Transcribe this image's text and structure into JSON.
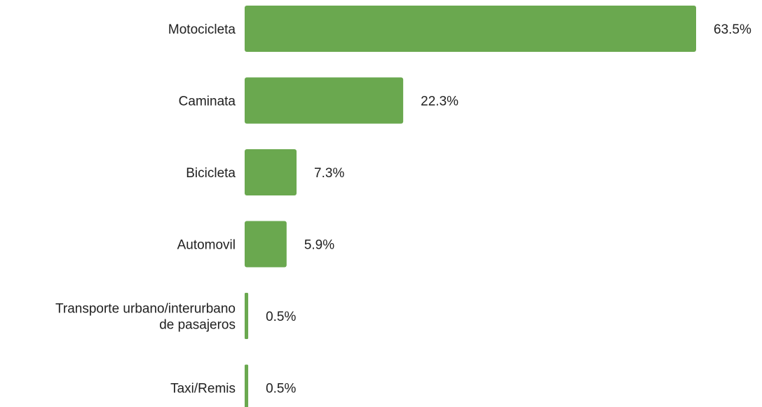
{
  "chart_data": {
    "type": "bar",
    "orientation": "horizontal",
    "title": "",
    "xlabel": "",
    "ylabel": "",
    "grid": false,
    "legend": "none",
    "bar_color": "#6aa84f",
    "categories": [
      [
        "Motocicleta"
      ],
      [
        "Caminata"
      ],
      [
        "Bicicleta"
      ],
      [
        "Automovil"
      ],
      [
        "Transporte urbano/interurbano",
        "de pasajeros"
      ],
      [
        "Taxi/Remis"
      ]
    ],
    "values": [
      63.5,
      22.3,
      7.3,
      5.9,
      0.5,
      0.5
    ],
    "value_labels": [
      "63.5%",
      "22.3%",
      "7.3%",
      "5.9%",
      "0.5%",
      "0.5%"
    ],
    "xlim": [
      0,
      63.5
    ]
  }
}
